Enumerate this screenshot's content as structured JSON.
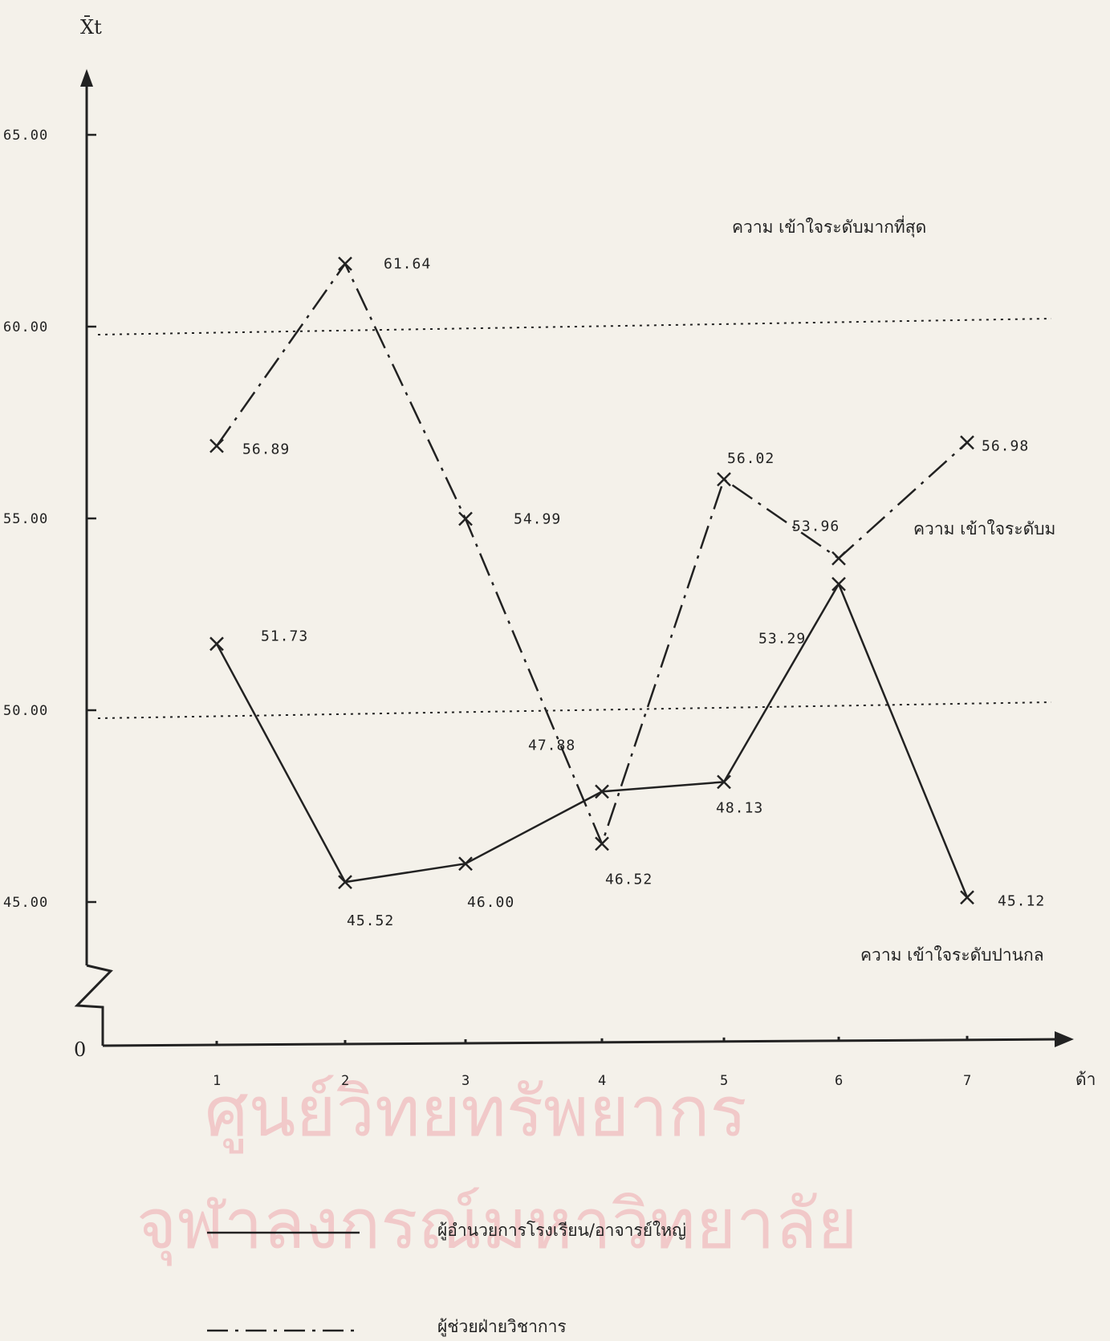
{
  "chart_data": {
    "type": "line",
    "y_axis_label": "X̄t",
    "x_axis_label": "ด้า",
    "origin_label": "0",
    "x": [
      1,
      2,
      3,
      4,
      5,
      6,
      7
    ],
    "x_tick_labels": [
      "1",
      "2",
      "3",
      "4",
      "5",
      "6",
      "7"
    ],
    "y_tick_values": [
      45,
      50,
      55,
      60,
      65
    ],
    "y_tick_labels": [
      "45.00",
      "50.00",
      "55.00",
      "60.00",
      "65.00"
    ],
    "ylim": [
      43.5,
      66.5
    ],
    "axis_break": true,
    "series": [
      {
        "name": "ผู้อำนวยการโรงเรียน/อาจารย์ใหญ่",
        "style": "solid",
        "values": [
          51.73,
          45.52,
          46.0,
          47.88,
          48.13,
          53.29,
          45.12
        ],
        "labels": [
          "51.73",
          "45.52",
          "46.00",
          "47.88",
          "48.13",
          "53.29",
          "45.12"
        ]
      },
      {
        "name": "ผู้ช่วยฝ่ายวิชาการ",
        "style": "dash-dot",
        "values": [
          56.89,
          61.64,
          54.99,
          46.52,
          56.02,
          53.96,
          56.98
        ],
        "labels": [
          "56.89",
          "61.64",
          "54.99",
          "46.52",
          "56.02",
          "53.96",
          "56.98"
        ]
      }
    ],
    "reference_lines": [
      60,
      50
    ],
    "band_labels": [
      "ความ เข้าใจระดับมากที่สุด",
      "ความ เข้าใจระดับม",
      "ความ เข้าใจระดับปานกล"
    ],
    "watermark": [
      "ศูนย์วิทยทรัพยากร",
      "จุฬาลงกรณ์มหาวิทยาลัย"
    ],
    "colors": {
      "ink": "#222222",
      "paper": "#f4f1ea",
      "watermark": "#f1c9c9"
    }
  }
}
